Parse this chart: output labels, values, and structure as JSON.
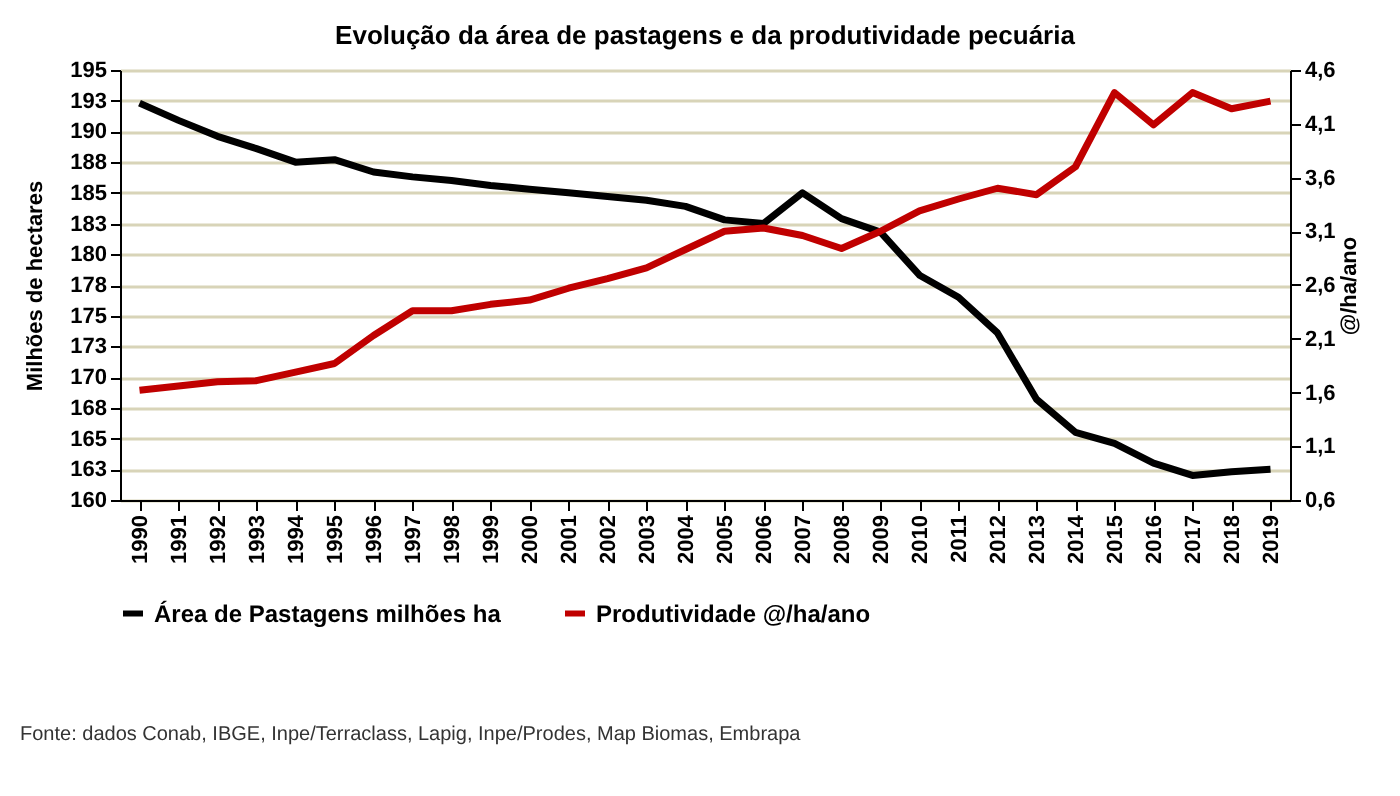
{
  "chart_data": {
    "type": "line",
    "title": "Evolução da área de pastagens e da produtividade pecuária",
    "categories": [
      "1990",
      "1991",
      "1992",
      "1993",
      "1994",
      "1995",
      "1996",
      "1997",
      "1998",
      "1999",
      "2000",
      "2001",
      "2002",
      "2003",
      "2004",
      "2005",
      "2006",
      "2007",
      "2008",
      "2009",
      "2010",
      "2011",
      "2012",
      "2013",
      "2014",
      "2015",
      "2016",
      "2017",
      "2018",
      "2019"
    ],
    "series": [
      {
        "name": "Área de Pastagens milhões ha",
        "color": "#000000",
        "values": [
          192.3,
          190.9,
          189.6,
          188.6,
          187.5,
          187.7,
          186.7,
          186.3,
          186.0,
          185.6,
          185.3,
          185.0,
          184.7,
          184.4,
          183.9,
          182.8,
          182.5,
          185.0,
          182.9,
          181.8,
          178.3,
          176.5,
          173.6,
          168.2,
          165.5,
          164.6,
          163.0,
          162.0,
          162.3,
          162.5
        ]
      },
      {
        "name": "Produtividade  @/ha/ano",
        "color": "#c00000",
        "axis": "y2",
        "values": [
          1.62,
          1.66,
          1.7,
          1.71,
          1.79,
          1.87,
          2.13,
          2.36,
          2.36,
          2.42,
          2.46,
          2.57,
          2.66,
          2.76,
          2.93,
          3.1,
          3.13,
          3.06,
          2.94,
          3.1,
          3.29,
          3.4,
          3.5,
          3.44,
          3.7,
          4.39,
          4.09,
          4.39,
          4.24,
          4.31
        ]
      }
    ],
    "ylabel": "Milhões de hectares",
    "y2label": "@/ha/ano",
    "ylim": [
      160,
      195
    ],
    "yticks": [
      160,
      {
        "value": 162.5,
        "label": "163"
      },
      165,
      {
        "value": 167.5,
        "label": "168"
      },
      170,
      {
        "value": 172.5,
        "label": "173"
      },
      175,
      {
        "value": 177.5,
        "label": "178"
      },
      180,
      {
        "value": 182.5,
        "label": "183"
      },
      185,
      {
        "value": 187.5,
        "label": "188"
      },
      190,
      {
        "value": 192.5,
        "label": "193"
      },
      195
    ],
    "y2lim": [
      0.6,
      4.6
    ],
    "y2ticks": [
      {
        "value": 0.6,
        "label": "0,6"
      },
      {
        "value": 1.1,
        "label": "1,1"
      },
      {
        "value": 1.6,
        "label": "1,6"
      },
      {
        "value": 2.1,
        "label": "2,1"
      },
      {
        "value": 2.6,
        "label": "2,6"
      },
      {
        "value": 3.1,
        "label": "3,1"
      },
      {
        "value": 3.6,
        "label": "3,6"
      },
      {
        "value": 4.1,
        "label": "4,1"
      },
      {
        "value": 4.6,
        "label": "4,6"
      }
    ],
    "grid": "y",
    "legend": "bottom",
    "marker": "none",
    "line_style": "solid",
    "annotations": [
      "Fonte: dados Conab, IBGE, Inpe/Terraclass, Lapig, Inpe/Prodes, Map Biomas, Embrapa"
    ]
  }
}
